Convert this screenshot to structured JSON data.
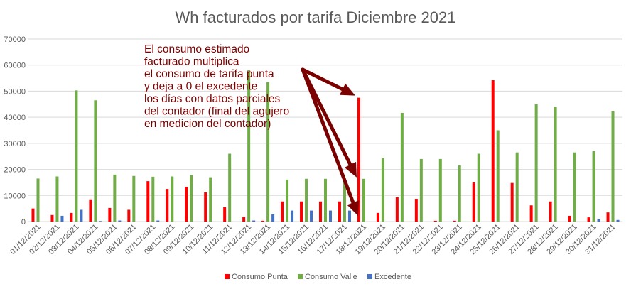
{
  "chart_data": {
    "type": "bar",
    "title": "Wh facturados por tarifa Diciembre 2021",
    "xlabel": "",
    "ylabel": "",
    "ylim": [
      0,
      70000
    ],
    "yticks": [
      0,
      10000,
      20000,
      30000,
      40000,
      50000,
      60000,
      70000
    ],
    "grid": true,
    "legend_position": "bottom",
    "categories": [
      "01/12/2021",
      "02/12/2021",
      "03/12/2021",
      "04/12/2021",
      "05/12/2021",
      "06/12/2021",
      "07/12/2021",
      "08/12/2021",
      "09/12/2021",
      "10/12/2021",
      "11/12/2021",
      "12/12/2021",
      "13/12/2021",
      "14/12/2021",
      "15/12/2021",
      "16/12/2021",
      "17/12/2021",
      "18/12/2021",
      "19/12/2021",
      "20/12/2021",
      "21/12/2021",
      "22/12/2021",
      "23/12/2021",
      "24/12/2021",
      "25/12/2021",
      "26/12/2021",
      "27/12/2021",
      "28/12/2021",
      "29/12/2021",
      "30/12/2021",
      "31/12/2021"
    ],
    "series": [
      {
        "name": "Consumo Punta",
        "color": "#ff0000",
        "values": [
          5000,
          2500,
          3300,
          8500,
          5200,
          4500,
          15500,
          12500,
          13300,
          11200,
          5500,
          1800,
          300,
          7700,
          7700,
          7700,
          7700,
          47500,
          3300,
          9300,
          8700,
          300,
          300,
          15000,
          54200,
          14800,
          6200,
          7700,
          2200,
          1600,
          3500
        ]
      },
      {
        "name": "Consumo Valle",
        "color": "#70ad47",
        "values": [
          16500,
          17300,
          50300,
          46500,
          18000,
          17500,
          17200,
          17300,
          17800,
          17000,
          26000,
          58000,
          53500,
          16100,
          16400,
          16400,
          16400,
          16400,
          24300,
          41700,
          24000,
          24000,
          21500,
          26000,
          35000,
          26500,
          45000,
          44000,
          26500,
          27000,
          42300
        ]
      },
      {
        "name": "Excedente",
        "color": "#4472c4",
        "values": [
          0,
          2200,
          4500,
          200,
          400,
          0,
          400,
          0,
          0,
          0,
          0,
          400,
          2800,
          4200,
          4200,
          4200,
          4200,
          0,
          0,
          0,
          0,
          0,
          0,
          0,
          0,
          0,
          0,
          0,
          0,
          900,
          600
        ]
      }
    ],
    "annotation": {
      "lines": [
        "El consumo estimado",
        "facturado multiplica",
        "el consumo de tarifa punta",
        "y deja a 0 el excedente",
        "los días con datos parciales",
        "del contador (final del agujero",
        "en medicion del contador)"
      ],
      "color": "#7b0000"
    }
  }
}
